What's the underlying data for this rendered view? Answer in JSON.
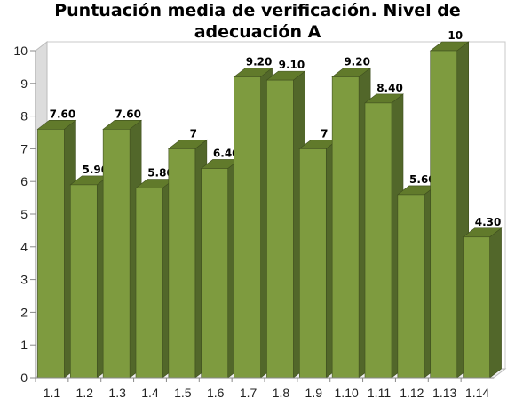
{
  "chart_data": {
    "type": "bar",
    "title": "Puntuación media de verificación. Nivel de adecuación A",
    "categories": [
      "1.1",
      "1.2",
      "1.3",
      "1.4",
      "1.5",
      "1.6",
      "1.7",
      "1.8",
      "1.9",
      "1.10",
      "1.11",
      "1.12",
      "1.13",
      "1.14"
    ],
    "values": [
      7.6,
      5.9,
      7.6,
      5.8,
      7,
      6.4,
      9.2,
      9.1,
      7,
      9.2,
      8.4,
      5.6,
      10,
      4.3
    ],
    "data_labels": [
      "7.60",
      "5.90",
      "7.60",
      "5.80",
      "7",
      "6.40",
      "9.20",
      "9.10",
      "7",
      "9.20",
      "8.40",
      "5.60",
      "10",
      "4.30"
    ],
    "yticks": [
      "0",
      "1",
      "2",
      "3",
      "4",
      "5",
      "6",
      "7",
      "8",
      "9",
      "10"
    ],
    "ylim": [
      0,
      10
    ],
    "grid": false,
    "style": "3d",
    "colors": {
      "bar_front": "#7e9b3f",
      "bar_top": "#617a2b",
      "bar_side": "#52672a",
      "wall": "#dcdcdc"
    }
  }
}
